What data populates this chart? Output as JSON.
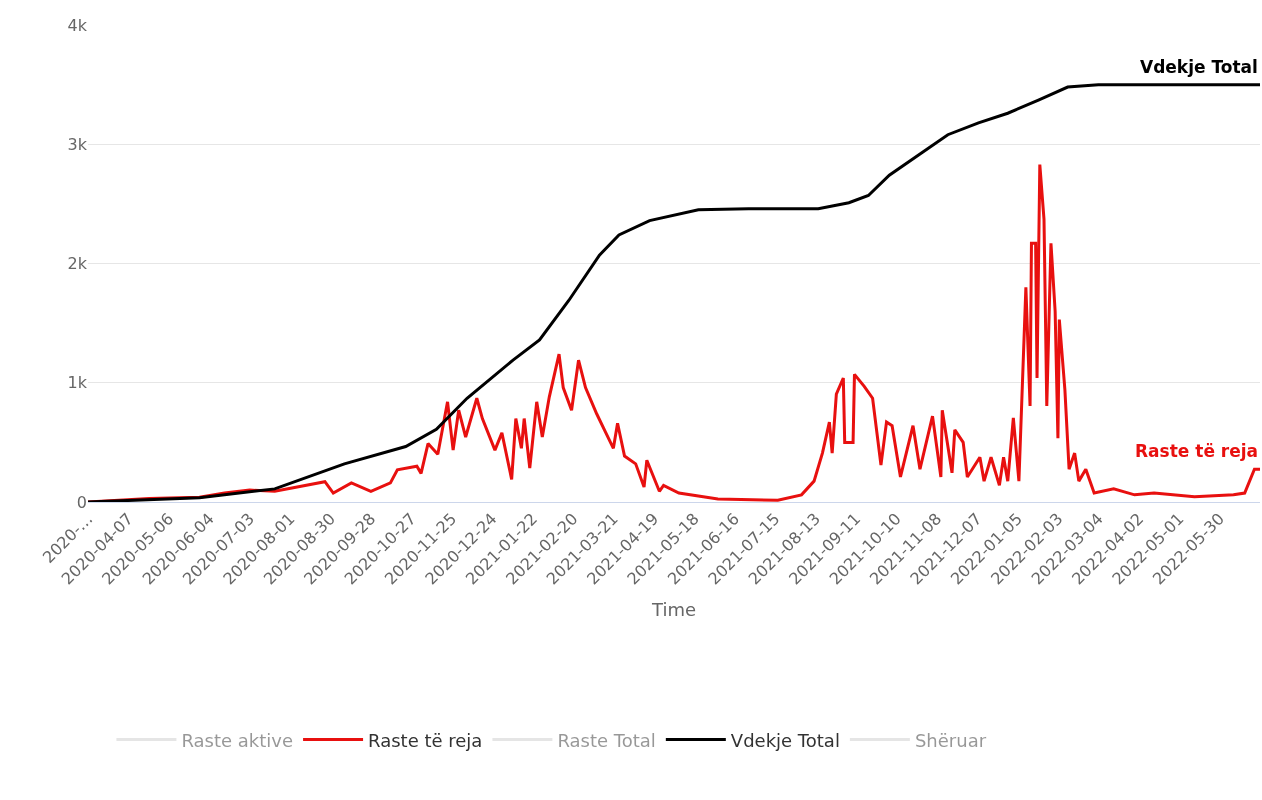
{
  "chart_data": {
    "type": "line",
    "xlabel": "Time",
    "xlim": [
      "2020-03-09",
      "2022-06-28"
    ],
    "xticks": [
      {
        "value": "2020-03-09",
        "label": "2020-…"
      },
      {
        "value": "2020-04-07",
        "label": "2020-04-07"
      },
      {
        "value": "2020-05-06",
        "label": "2020-05-06"
      },
      {
        "value": "2020-06-04",
        "label": "2020-06-04"
      },
      {
        "value": "2020-07-03",
        "label": "2020-07-03"
      },
      {
        "value": "2020-08-01",
        "label": "2020-08-01"
      },
      {
        "value": "2020-08-30",
        "label": "2020-08-30"
      },
      {
        "value": "2020-09-28",
        "label": "2020-09-28"
      },
      {
        "value": "2020-10-27",
        "label": "2020-10-27"
      },
      {
        "value": "2020-11-25",
        "label": "2020-11-25"
      },
      {
        "value": "2020-12-24",
        "label": "2020-12-24"
      },
      {
        "value": "2021-01-22",
        "label": "2021-01-22"
      },
      {
        "value": "2021-02-20",
        "label": "2021-02-20"
      },
      {
        "value": "2021-03-21",
        "label": "2021-03-21"
      },
      {
        "value": "2021-04-19",
        "label": "2021-04-19"
      },
      {
        "value": "2021-05-18",
        "label": "2021-05-18"
      },
      {
        "value": "2021-06-16",
        "label": "2021-06-16"
      },
      {
        "value": "2021-07-15",
        "label": "2021-07-15"
      },
      {
        "value": "2021-08-13",
        "label": "2021-08-13"
      },
      {
        "value": "2021-09-11",
        "label": "2021-09-11"
      },
      {
        "value": "2021-10-10",
        "label": "2021-10-10"
      },
      {
        "value": "2021-11-08",
        "label": "2021-11-08"
      },
      {
        "value": "2021-12-07",
        "label": "2021-12-07"
      },
      {
        "value": "2022-01-05",
        "label": "2022-01-05"
      },
      {
        "value": "2022-02-03",
        "label": "2022-02-03"
      },
      {
        "value": "2022-03-04",
        "label": "2022-03-04"
      },
      {
        "value": "2022-04-02",
        "label": "2022-04-02"
      },
      {
        "value": "2022-05-01",
        "label": "2022-05-01"
      },
      {
        "value": "2022-05-30",
        "label": "2022-05-30"
      }
    ],
    "ylim": [
      0,
      4000
    ],
    "yticks": [
      0,
      {
        "value": 1000,
        "label": "1k"
      },
      {
        "value": 2000,
        "label": "2k"
      },
      {
        "value": 3000,
        "label": "3k"
      },
      {
        "value": 4000,
        "label": "4k"
      }
    ],
    "grid": "y",
    "legend": "bottom",
    "series": [
      {
        "name": "Raste aktive",
        "color": "#cccccc"
      },
      {
        "name": "Raste të reja",
        "color": "#e8100f",
        "x": [
          "2020-03-09",
          "2020-04-22",
          "2020-05-28",
          "2020-06-15",
          "2020-07-03",
          "2020-07-21",
          "2020-08-08",
          "2020-08-26",
          "2020-09-01",
          "2020-09-14",
          "2020-09-28",
          "2020-10-12",
          "2020-10-17",
          "2020-10-31",
          "2020-11-03",
          "2020-11-08",
          "2020-11-15",
          "2020-11-22",
          "2020-11-26",
          "2020-11-30",
          "2020-12-05",
          "2020-12-13",
          "2020-12-17",
          "2020-12-26",
          "2020-12-31",
          "2021-01-07",
          "2021-01-10",
          "2021-01-14",
          "2021-01-16",
          "2021-01-20",
          "2021-01-25",
          "2021-01-29",
          "2021-02-03",
          "2021-02-10",
          "2021-02-13",
          "2021-02-19",
          "2021-02-24",
          "2021-03-01",
          "2021-03-09",
          "2021-03-15",
          "2021-03-21",
          "2021-03-24",
          "2021-03-29",
          "2021-04-06",
          "2021-04-12",
          "2021-04-14",
          "2021-04-23",
          "2021-04-26",
          "2021-05-07",
          "2021-06-04",
          "2021-07-17",
          "2021-08-03",
          "2021-08-12",
          "2021-08-18",
          "2021-08-23",
          "2021-08-25",
          "2021-08-28",
          "2021-09-02",
          "2021-09-03",
          "2021-09-09",
          "2021-09-10",
          "2021-09-17",
          "2021-09-23",
          "2021-09-29",
          "2021-10-03",
          "2021-10-07",
          "2021-10-13",
          "2021-10-22",
          "2021-10-27",
          "2021-11-05",
          "2021-11-11",
          "2021-11-12",
          "2021-11-19",
          "2021-11-21",
          "2021-11-27",
          "2021-11-30",
          "2021-12-09",
          "2021-12-12",
          "2021-12-17",
          "2021-12-23",
          "2021-12-26",
          "2021-12-29",
          "2022-01-02",
          "2022-01-06",
          "2022-01-11",
          "2022-01-14",
          "2022-01-15",
          "2022-01-18",
          "2022-01-19",
          "2022-01-21",
          "2022-01-24",
          "2022-01-26",
          "2022-01-29",
          "2022-02-01",
          "2022-02-03",
          "2022-02-04",
          "2022-02-08",
          "2022-02-11",
          "2022-02-15",
          "2022-02-18",
          "2022-02-23",
          "2022-03-01",
          "2022-03-15",
          "2022-03-30",
          "2022-04-13",
          "2022-05-12",
          "2022-06-09",
          "2022-06-17",
          "2022-06-24",
          "2022-06-28"
        ],
        "values": [
          0,
          30,
          40,
          75,
          100,
          90,
          130,
          170,
          75,
          160,
          90,
          160,
          270,
          300,
          240,
          490,
          400,
          840,
          435,
          770,
          545,
          870,
          700,
          435,
          580,
          190,
          700,
          450,
          700,
          285,
          840,
          545,
          880,
          1240,
          960,
          770,
          1190,
          960,
          740,
          595,
          450,
          660,
          385,
          320,
          125,
          350,
          90,
          140,
          75,
          25,
          15,
          60,
          175,
          410,
          670,
          410,
          905,
          1040,
          500,
          500,
          1070,
          970,
          870,
          310,
          670,
          640,
          210,
          640,
          275,
          720,
          210,
          770,
          245,
          605,
          500,
          210,
          375,
          175,
          375,
          140,
          375,
          175,
          705,
          175,
          1800,
          805,
          2170,
          2170,
          1040,
          2830,
          2370,
          805,
          2170,
          1600,
          535,
          1530,
          940,
          275,
          410,
          175,
          275,
          75,
          110,
          60,
          75,
          45,
          60,
          75,
          275,
          275
        ]
      },
      {
        "name": "Raste Total",
        "color": "#cccccc"
      },
      {
        "name": "Vdekje Total",
        "color": "#000000",
        "x": [
          "2020-03-09",
          "2020-05-28",
          "2020-07-21",
          "2020-09-09",
          "2020-10-23",
          "2020-11-14",
          "2020-12-06",
          "2021-01-08",
          "2021-01-27",
          "2021-02-17",
          "2021-03-11",
          "2021-03-25",
          "2021-04-16",
          "2021-05-21",
          "2021-06-26",
          "2021-08-15",
          "2021-09-06",
          "2021-09-20",
          "2021-10-05",
          "2021-10-26",
          "2021-11-16",
          "2021-12-08",
          "2021-12-29",
          "2022-01-20",
          "2022-02-10",
          "2022-03-04",
          "2022-06-28"
        ],
        "values": [
          0,
          35,
          110,
          320,
          465,
          610,
          870,
          1190,
          1360,
          1690,
          2070,
          2240,
          2360,
          2450,
          2460,
          2460,
          2510,
          2570,
          2740,
          2910,
          3080,
          3180,
          3260,
          3370,
          3480,
          3500,
          3500
        ]
      },
      {
        "name": "Shëruar",
        "color": "#cccccc"
      }
    ]
  }
}
